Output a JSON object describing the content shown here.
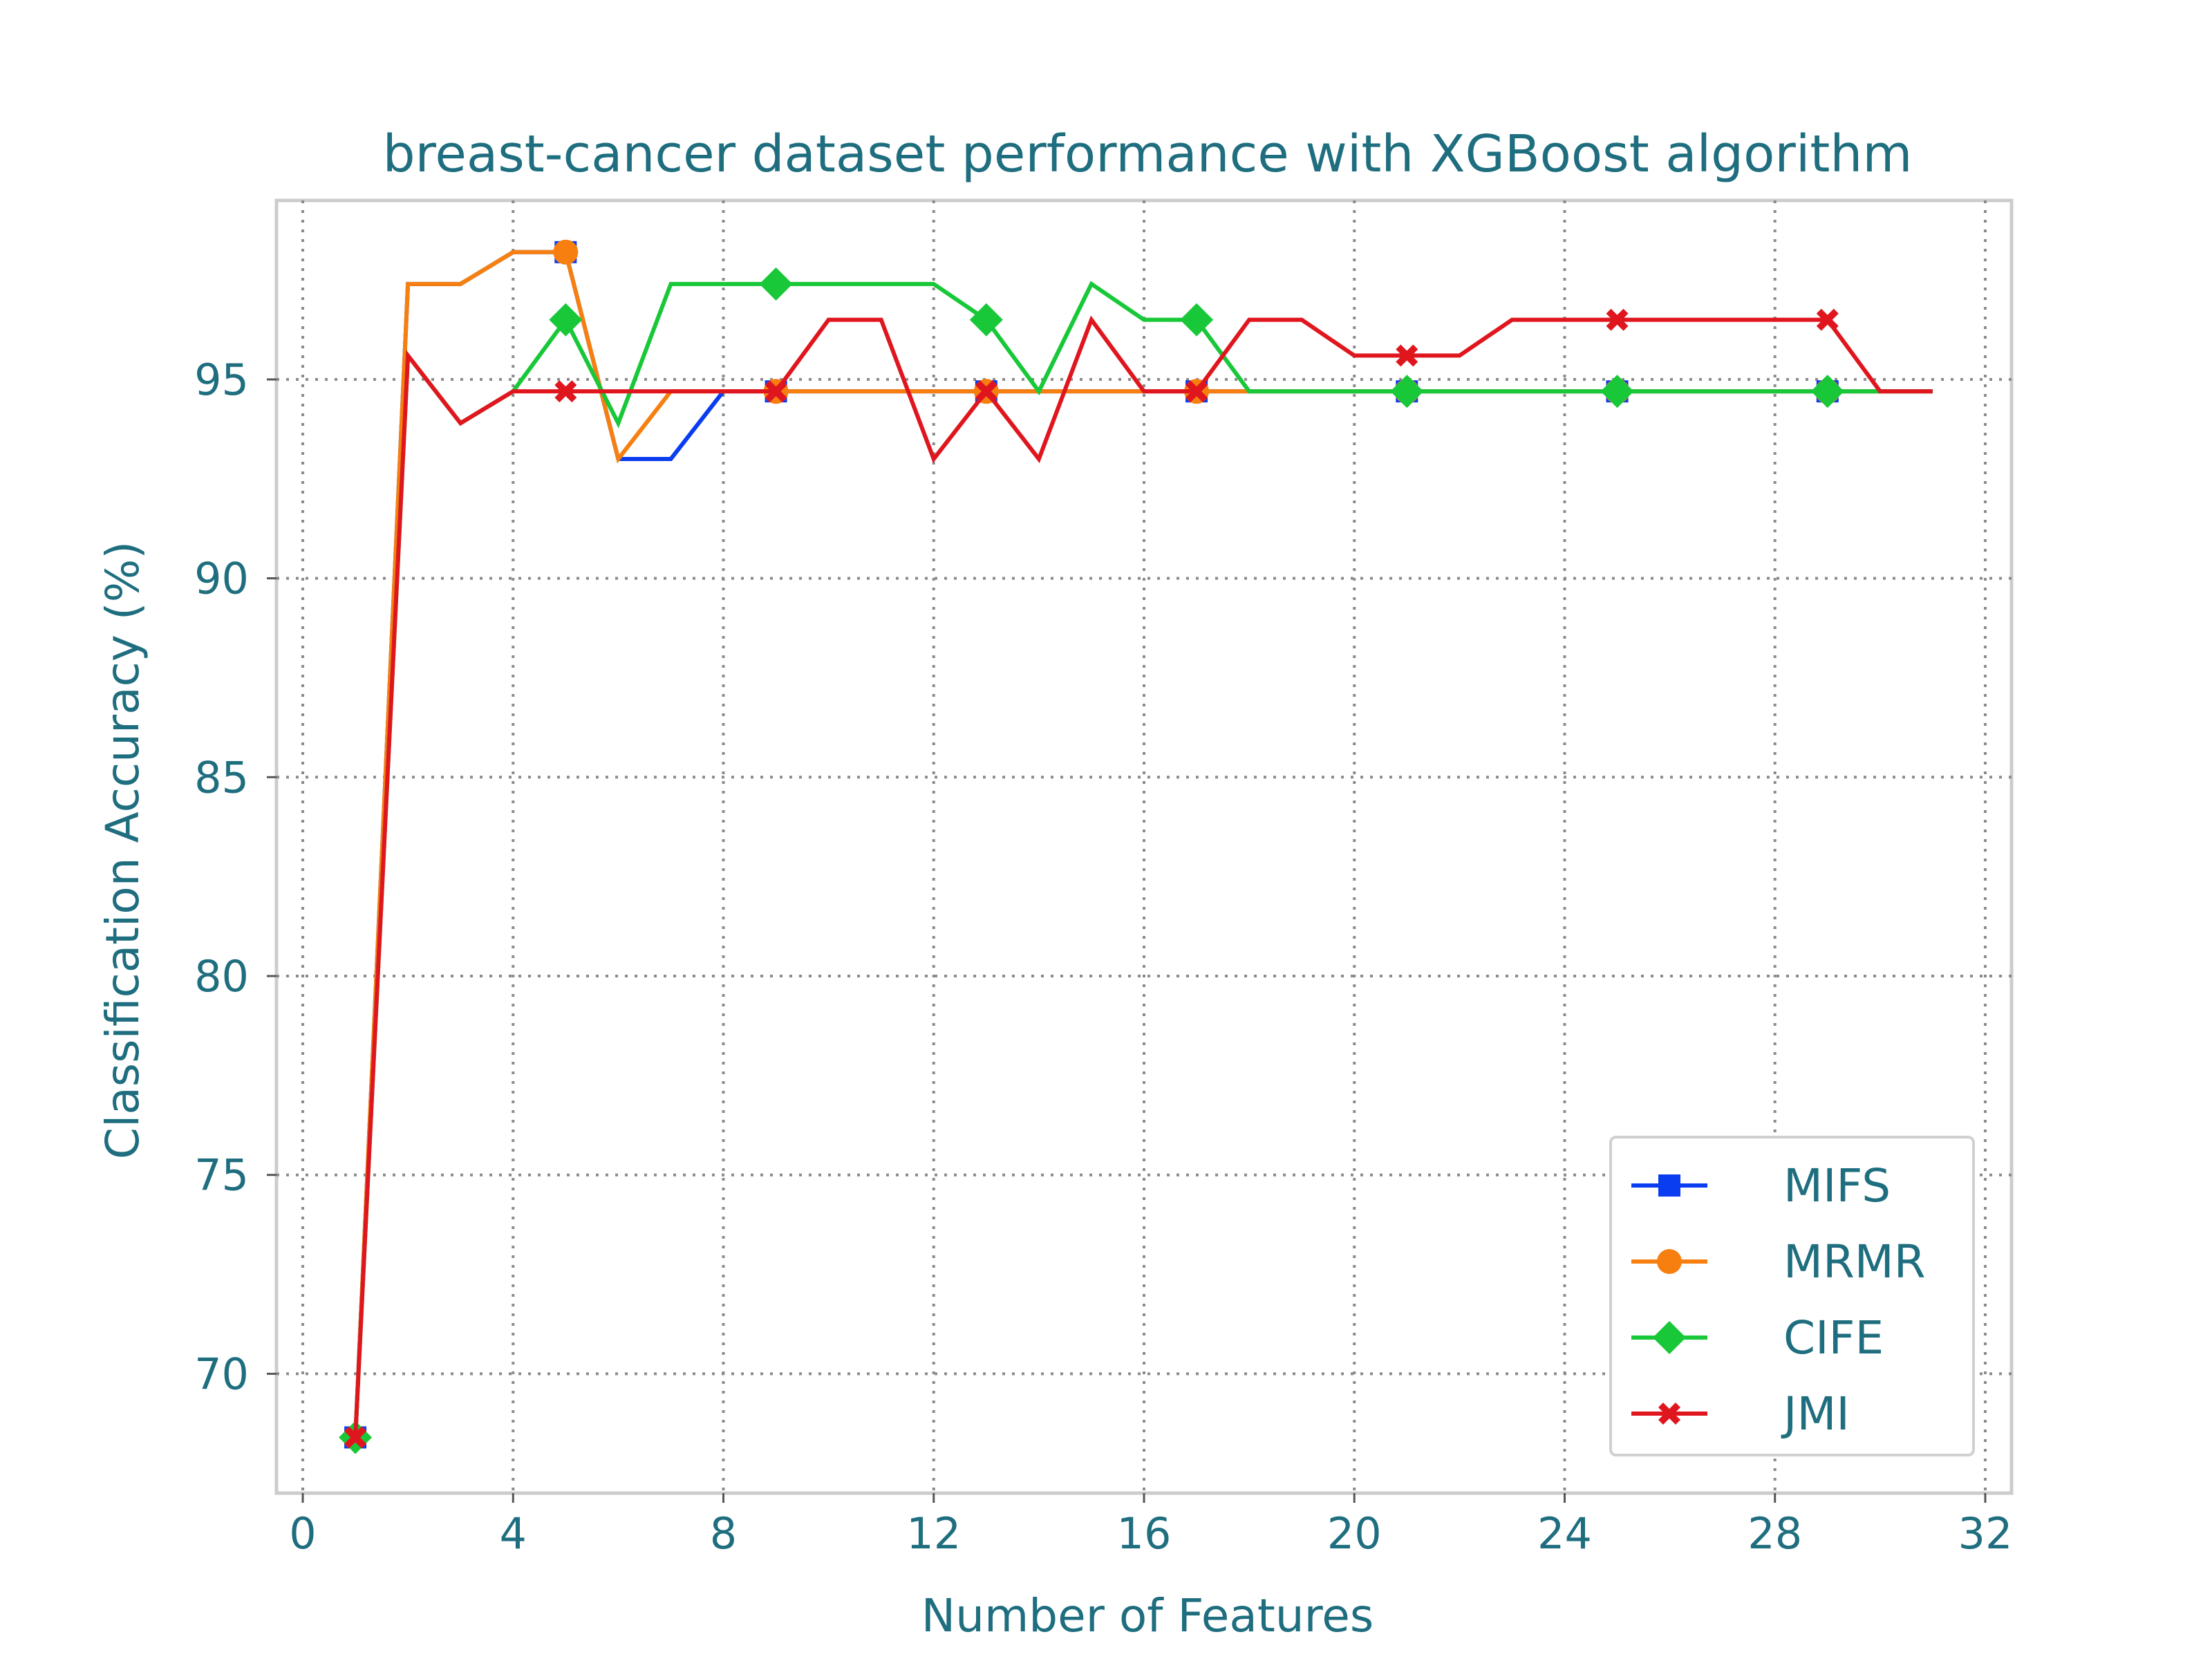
{
  "chart_data": {
    "type": "line",
    "title": "breast-cancer dataset performance with XGBoost algorithm",
    "xlabel": "Number of Features",
    "ylabel": "Classification Accuracy (%)",
    "xlim": [
      -0.5,
      32.5
    ],
    "ylim": [
      67.0,
      99.5
    ],
    "xticks": [
      0,
      4,
      8,
      12,
      16,
      20,
      24,
      28,
      32
    ],
    "yticks": [
      70,
      75,
      80,
      85,
      90,
      95
    ],
    "grid": true,
    "legend_position": "lower right",
    "x": [
      1,
      2,
      3,
      4,
      5,
      6,
      7,
      8,
      9,
      10,
      11,
      12,
      13,
      14,
      15,
      16,
      17,
      18,
      19,
      20,
      21,
      22,
      23,
      24,
      25,
      26,
      27,
      28,
      29,
      30,
      31
    ],
    "series": [
      {
        "name": "MIFS",
        "color": "#0a3cf0",
        "marker": "square",
        "values": [
          68.4,
          97.4,
          97.4,
          98.2,
          98.2,
          93.0,
          93.0,
          94.7,
          94.7,
          94.7,
          94.7,
          94.7,
          94.7,
          94.7,
          94.7,
          94.7,
          94.7,
          94.7,
          94.7,
          94.7,
          94.7,
          94.7,
          94.7,
          94.7,
          94.7,
          94.7,
          94.7,
          94.7,
          94.7,
          94.7,
          94.7
        ]
      },
      {
        "name": "MRMR",
        "color": "#f77f10",
        "marker": "circle",
        "values": [
          68.4,
          97.4,
          97.4,
          98.2,
          98.2,
          93.0,
          94.7,
          94.7,
          94.7,
          94.7,
          94.7,
          94.7,
          94.7,
          94.7,
          94.7,
          94.7,
          94.7,
          94.7,
          94.7,
          94.7,
          94.7,
          94.7,
          94.7,
          94.7,
          94.7,
          94.7,
          94.7,
          94.7,
          94.7,
          94.7,
          94.7
        ]
      },
      {
        "name": "CIFE",
        "color": "#18c838",
        "marker": "diamond",
        "values": [
          68.4,
          95.6,
          93.9,
          94.7,
          96.5,
          93.9,
          97.4,
          97.4,
          97.4,
          97.4,
          97.4,
          97.4,
          96.5,
          94.7,
          97.4,
          96.5,
          96.5,
          94.7,
          94.7,
          94.7,
          94.7,
          94.7,
          94.7,
          94.7,
          94.7,
          94.7,
          94.7,
          94.7,
          94.7,
          94.7,
          94.7
        ]
      },
      {
        "name": "JMI",
        "color": "#e0161e",
        "marker": "x",
        "values": [
          68.4,
          95.6,
          93.9,
          94.7,
          94.7,
          94.7,
          94.7,
          94.7,
          94.7,
          96.5,
          96.5,
          93.0,
          94.7,
          93.0,
          96.5,
          94.7,
          94.7,
          96.5,
          96.5,
          95.6,
          95.6,
          95.6,
          96.5,
          96.5,
          96.5,
          96.5,
          96.5,
          96.5,
          96.5,
          94.7,
          94.7
        ]
      }
    ],
    "marker_x": [
      1,
      5,
      9,
      13,
      17,
      21,
      25,
      29
    ]
  }
}
